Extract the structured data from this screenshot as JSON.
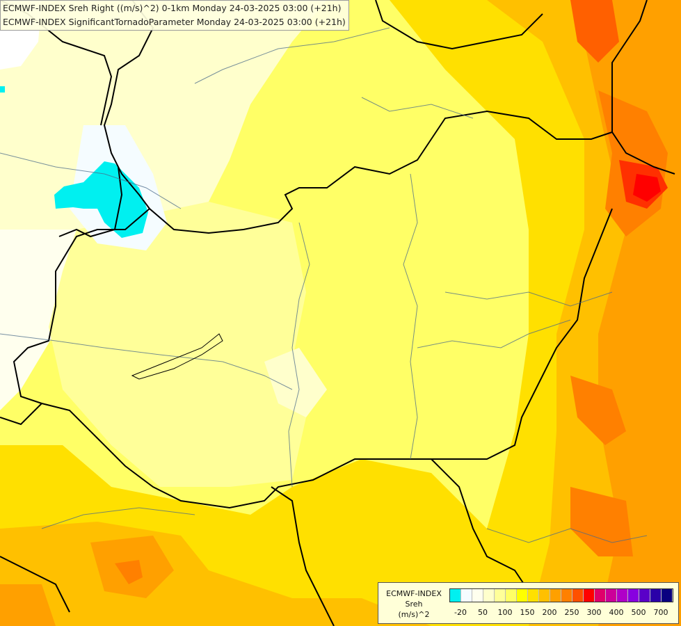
{
  "title_lines": [
    "ECMWF-INDEX Sreh Right ((m/s)^2) 0-1km Monday 24-03-2025 03:00 (+21h)",
    "ECMWF-INDEX SignificantTornadoParameter Monday 24-03-2025 03:00 (+21h)"
  ],
  "legend": {
    "line1": "ECMWF-INDEX",
    "line2": "Sreh",
    "line3": "(m/s)^2",
    "colors": [
      "#00f0f0",
      "#f5fcff",
      "#ffffee",
      "#ffffcc",
      "#ffff99",
      "#ffff66",
      "#ffff00",
      "#ffe000",
      "#ffc000",
      "#ffa000",
      "#ff8000",
      "#ff5000",
      "#ff0000",
      "#e0006a",
      "#cc0099",
      "#b000c8",
      "#8800e0",
      "#5a00c8",
      "#2a00a8",
      "#0a0080"
    ],
    "ticks": [
      "-20",
      "50",
      "100",
      "150",
      "200",
      "250",
      "300",
      "400",
      "500",
      "700"
    ]
  }
}
